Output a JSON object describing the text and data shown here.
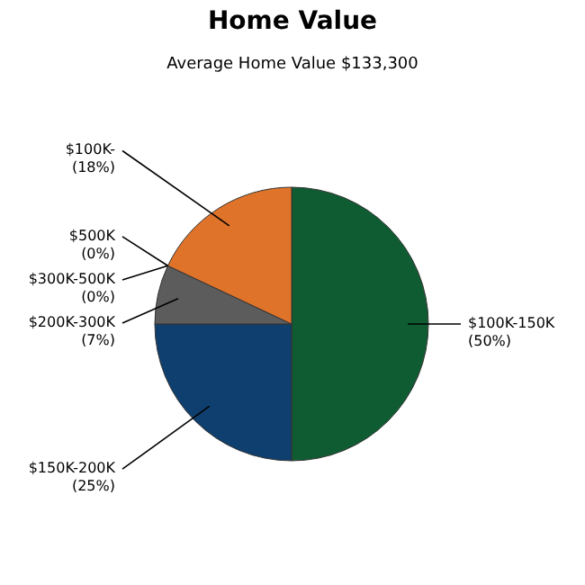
{
  "chart_data": {
    "type": "pie",
    "title": "Home Value",
    "subtitle": "Average Home Value  $133,300",
    "categories": [
      "$100K-150K",
      "$150K-200K",
      "$200K-300K",
      "$500K",
      "$300K-500K",
      "$100K-"
    ],
    "values": [
      50,
      25,
      7,
      0,
      0,
      18
    ],
    "value_labels": [
      "(50%)",
      "(25%)",
      "(7%)",
      "(0%)",
      "(0%)",
      "(18%)"
    ],
    "colors": [
      "#0f5c32",
      "#0f3f6e",
      "#5c5c5c",
      "#8a8a8a",
      "#b0b0b0",
      "#e0732a"
    ]
  }
}
